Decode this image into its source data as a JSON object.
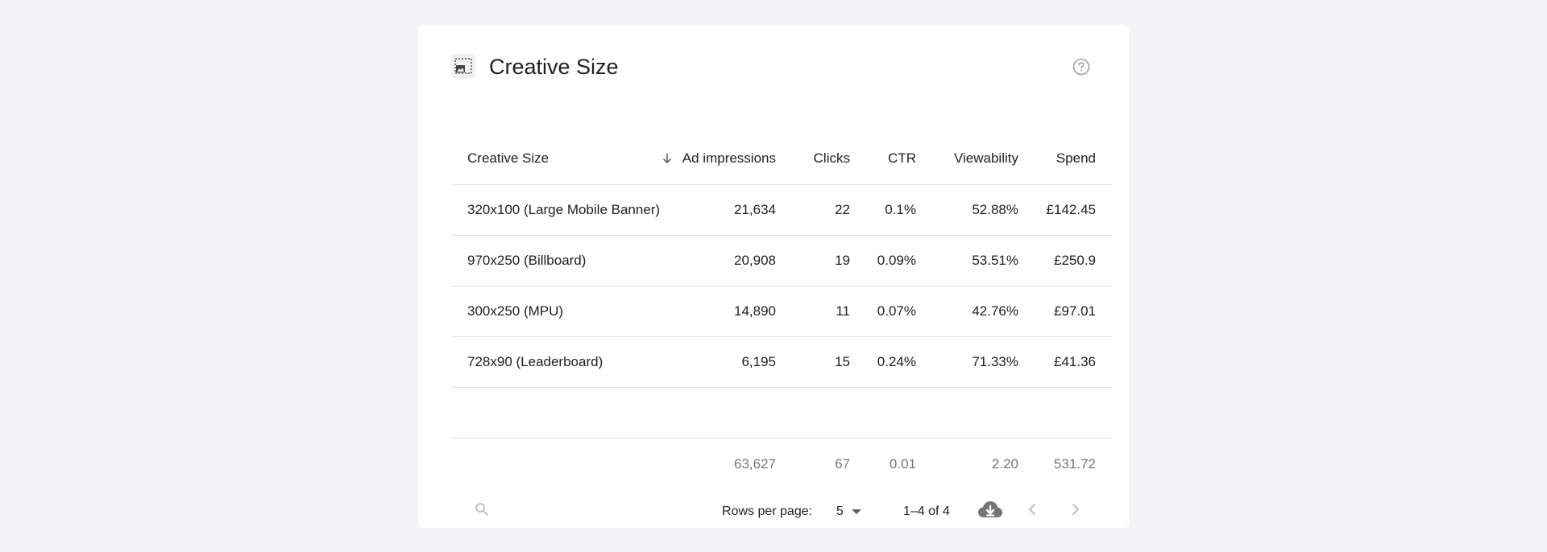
{
  "card": {
    "title": "Creative Size",
    "icon": "image-placeholder-icon",
    "help_icon": "help-circle-icon"
  },
  "table": {
    "columns": [
      "Creative Size",
      "Ad impressions",
      "Clicks",
      "CTR",
      "Viewability",
      "Spend"
    ],
    "sort": {
      "column": "Creative Size",
      "direction": "desc"
    },
    "rows": [
      [
        "320x100 (Large Mobile Banner)",
        "21,634",
        "22",
        "0.1%",
        "52.88%",
        "£142.45"
      ],
      [
        "970x250 (Billboard)",
        "20,908",
        "19",
        "0.09%",
        "53.51%",
        "£250.9"
      ],
      [
        "300x250 (MPU)",
        "14,890",
        "11",
        "0.07%",
        "42.76%",
        "£97.01"
      ],
      [
        "728x90 (Leaderboard)",
        "6,195",
        "15",
        "0.24%",
        "71.33%",
        "£41.36"
      ]
    ],
    "totals": [
      "",
      "63,627",
      "67",
      "0.01",
      "2.20",
      "531.72"
    ]
  },
  "footer": {
    "rows_per_page_label": "Rows per page:",
    "rows_per_page_value": "5",
    "page_range": "1–4 of 4",
    "icons": [
      "search-icon",
      "chevron-down-icon",
      "cloud-download-icon",
      "chevron-left-icon",
      "chevron-right-icon"
    ]
  }
}
